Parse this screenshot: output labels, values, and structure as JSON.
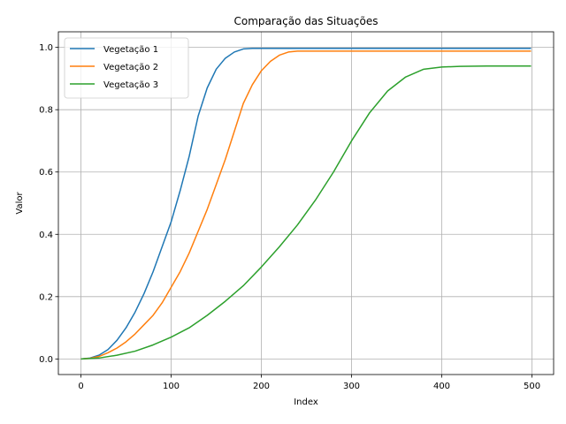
{
  "chart_data": {
    "type": "line",
    "title": "Comparação das Situações",
    "xlabel": "Index",
    "ylabel": "Valor",
    "xlim": [
      -25,
      524
    ],
    "ylim": [
      -0.05,
      1.05
    ],
    "xticks": [
      0,
      100,
      200,
      300,
      400,
      500
    ],
    "xtick_labels": [
      "0",
      "100",
      "200",
      "300",
      "400",
      "500"
    ],
    "yticks": [
      0.0,
      0.2,
      0.4,
      0.6,
      0.8,
      1.0
    ],
    "ytick_labels": [
      "0.0",
      "0.2",
      "0.4",
      "0.6",
      "0.8",
      "1.0"
    ],
    "grid": true,
    "legend_position": "top-left",
    "series": [
      {
        "name": "Vegetação 1",
        "color": "#1f77b4",
        "x": [
          0,
          10,
          20,
          30,
          40,
          50,
          60,
          70,
          80,
          90,
          100,
          110,
          120,
          130,
          140,
          150,
          160,
          170,
          180,
          190,
          200,
          250,
          300,
          350,
          400,
          450,
          499
        ],
        "y": [
          0.0,
          0.003,
          0.012,
          0.03,
          0.06,
          0.1,
          0.15,
          0.21,
          0.28,
          0.36,
          0.44,
          0.54,
          0.65,
          0.78,
          0.87,
          0.93,
          0.965,
          0.985,
          0.995,
          0.997,
          0.997,
          0.997,
          0.997,
          0.997,
          0.997,
          0.997,
          0.997
        ]
      },
      {
        "name": "Vegetação 2",
        "color": "#ff7f0e",
        "x": [
          0,
          10,
          20,
          30,
          40,
          50,
          60,
          70,
          80,
          90,
          100,
          110,
          120,
          130,
          140,
          150,
          160,
          170,
          180,
          190,
          200,
          210,
          220,
          230,
          240,
          250,
          300,
          350,
          400,
          450,
          499
        ],
        "y": [
          0.0,
          0.002,
          0.008,
          0.02,
          0.035,
          0.055,
          0.08,
          0.11,
          0.14,
          0.18,
          0.23,
          0.28,
          0.34,
          0.41,
          0.48,
          0.56,
          0.64,
          0.73,
          0.82,
          0.88,
          0.925,
          0.955,
          0.975,
          0.985,
          0.988,
          0.988,
          0.988,
          0.988,
          0.988,
          0.988,
          0.988
        ]
      },
      {
        "name": "Vegetação 3",
        "color": "#2ca02c",
        "x": [
          0,
          20,
          40,
          60,
          80,
          100,
          120,
          140,
          160,
          180,
          200,
          220,
          240,
          260,
          280,
          300,
          320,
          340,
          360,
          380,
          400,
          420,
          450,
          499
        ],
        "y": [
          0.0,
          0.003,
          0.012,
          0.025,
          0.045,
          0.07,
          0.1,
          0.14,
          0.185,
          0.235,
          0.295,
          0.36,
          0.43,
          0.51,
          0.6,
          0.7,
          0.79,
          0.86,
          0.905,
          0.93,
          0.937,
          0.939,
          0.94,
          0.94
        ]
      }
    ]
  }
}
